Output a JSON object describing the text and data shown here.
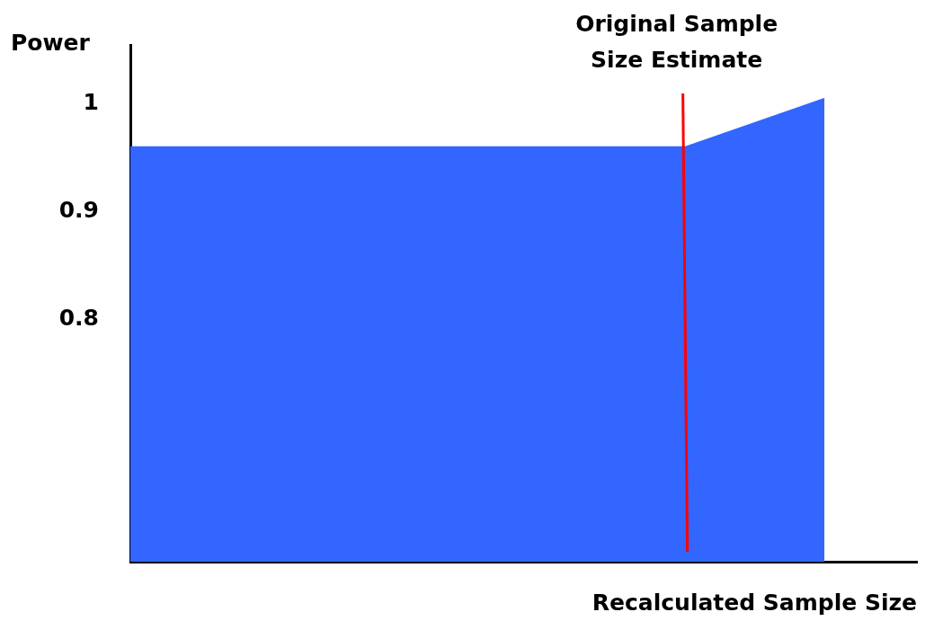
{
  "chart_data": {
    "type": "area",
    "xlabel": "Recalculated Sample Size",
    "ylabel": "Power",
    "categories": [
      null,
      null,
      null,
      null,
      null,
      null,
      null,
      null,
      null,
      null,
      null,
      null,
      null,
      null,
      null,
      null,
      null,
      null
    ],
    "series": [
      {
        "color": "#3366ff",
        "values": [
          0.96,
          0.96,
          0.96,
          0.96,
          0.96,
          0.96,
          0.96,
          0.96,
          0.96,
          0.96,
          0.96,
          0.96,
          0.96,
          null,
          null,
          1.005,
          null,
          null
        ]
      }
    ],
    "ylim": [
      0.575,
      1.055
    ],
    "yticks": [
      0.8,
      0.9,
      1
    ],
    "tick_labels": "y",
    "grid": false,
    "legend": false,
    "annotations": [
      "Original Sample Size Estimate"
    ]
  }
}
